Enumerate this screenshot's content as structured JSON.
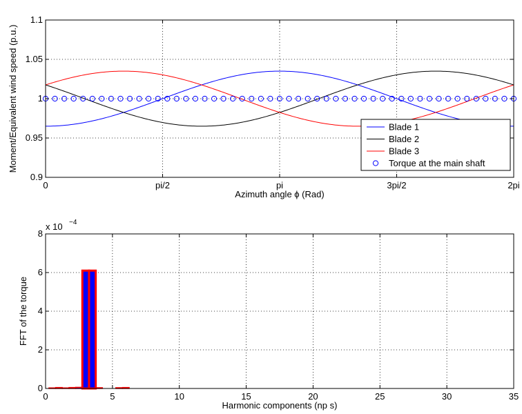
{
  "colors": {
    "blade1": "#0000ff",
    "blade2": "#000000",
    "blade3": "#ff0000",
    "torque": "#0000ff",
    "grid": "#000000",
    "bar_fill": "#0000ff",
    "bar_edge": "#ff0000"
  },
  "chart_data": [
    {
      "type": "line",
      "xlabel": "Azimuth angle ϕ (Rad)",
      "ylabel": "Moment/Equivalent wind speed (p.u.)",
      "xlim": [
        0,
        6.2832
      ],
      "ylim": [
        0.9,
        1.1
      ],
      "xticks": [
        0,
        1.5708,
        3.1416,
        4.7124,
        6.2832
      ],
      "xtick_labels": [
        "0",
        "pi/2",
        "pi",
        "3pi/2",
        "2pi"
      ],
      "yticks": [
        0.9,
        0.95,
        1.0,
        1.05,
        1.1
      ],
      "ytick_labels": [
        "0.9",
        "0.95",
        "1",
        "1.05",
        "1.1"
      ],
      "grid": true,
      "legend_position": "bottom-right",
      "series": [
        {
          "name": "Blade 1",
          "color_key": "blade1",
          "style": "line",
          "formula": "1 - 0.035*cos(x)"
        },
        {
          "name": "Blade 2",
          "color_key": "blade2",
          "style": "line",
          "formula": "1 - 0.035*cos(x - 2pi/3)"
        },
        {
          "name": "Blade 3",
          "color_key": "blade3",
          "style": "line",
          "formula": "1 - 0.035*cos(x + 2pi/3)"
        },
        {
          "name": "Torque at the main shaft",
          "color_key": "torque",
          "style": "markers",
          "marker": "circle",
          "count": 51,
          "value": 1.0
        }
      ]
    },
    {
      "type": "bar",
      "xlabel": "Harmonic components (np s)",
      "ylabel": "FFT of the torque",
      "ymultiplier": "x 10",
      "ymultiplier_exp": "−4",
      "xlim": [
        0,
        35
      ],
      "ylim": [
        0,
        8
      ],
      "xticks": [
        0,
        5,
        10,
        15,
        20,
        25,
        30,
        35
      ],
      "yticks": [
        0,
        2,
        4,
        6,
        8
      ],
      "grid": true,
      "bar_width": 0.5,
      "x": [
        0.5,
        1,
        1.5,
        2,
        2.5,
        3,
        3.5,
        4,
        5.5,
        6
      ],
      "values": [
        0.03,
        0.05,
        0.03,
        0.05,
        0.06,
        6.1,
        6.1,
        0.04,
        0.04,
        0.05
      ]
    }
  ]
}
